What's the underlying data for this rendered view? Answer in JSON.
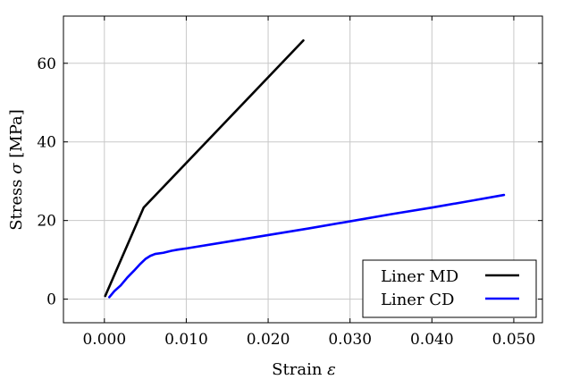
{
  "chart_data": {
    "type": "line",
    "xlabel": "Strain",
    "xlabel_symbol": "ε",
    "ylabel": "Stress",
    "ylabel_symbol": "σ",
    "ylabel_unit": "[MPa]",
    "xlim": [
      -0.005,
      0.0535
    ],
    "ylim": [
      -6,
      72
    ],
    "x_ticks": [
      0.0,
      0.01,
      0.02,
      0.03,
      0.04,
      0.05
    ],
    "x_tick_labels": [
      "0.000",
      "0.010",
      "0.020",
      "0.030",
      "0.040",
      "0.050"
    ],
    "y_ticks": [
      0,
      20,
      40,
      60
    ],
    "y_tick_labels": [
      "0",
      "20",
      "40",
      "60"
    ],
    "grid": true,
    "legend_position": "bottom-right",
    "series": [
      {
        "name": "Liner MD",
        "color": "#000000",
        "x": [
          0.0001,
          0.0048,
          0.0243
        ],
        "y": [
          0.8,
          23.3,
          65.8
        ]
      },
      {
        "name": "Liner CD",
        "color": "#0000ff",
        "x": [
          0.0006,
          0.0012,
          0.002,
          0.0028,
          0.0036,
          0.0044,
          0.005,
          0.0056,
          0.0062,
          0.0072,
          0.0082,
          0.009,
          0.01,
          0.015,
          0.02,
          0.025,
          0.03,
          0.035,
          0.04,
          0.045,
          0.0488
        ],
        "y": [
          0.5,
          2.0,
          3.5,
          5.5,
          7.2,
          9.0,
          10.2,
          11.0,
          11.5,
          11.8,
          12.3,
          12.6,
          12.9,
          14.6,
          16.3,
          18.0,
          19.8,
          21.6,
          23.3,
          25.1,
          26.5
        ]
      }
    ]
  }
}
